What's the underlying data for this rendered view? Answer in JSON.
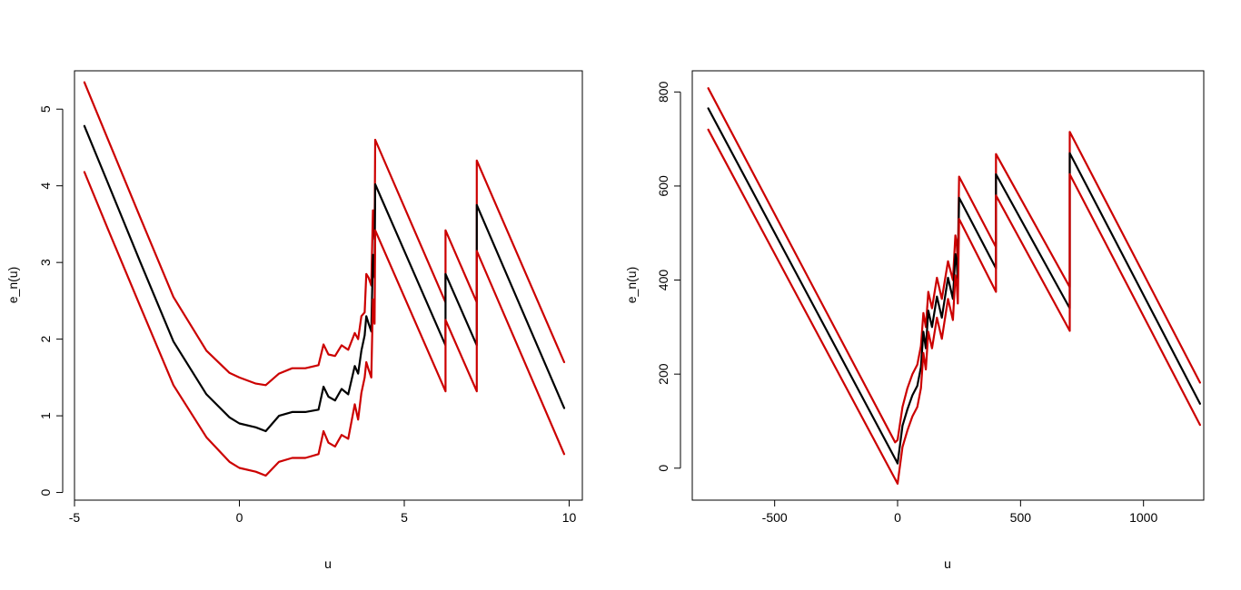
{
  "chart_data": [
    {
      "type": "line",
      "title": "",
      "xlabel": "u",
      "ylabel": "e_n(u)",
      "xlim": [
        -5,
        10.4
      ],
      "ylim": [
        -0.1,
        5.5
      ],
      "xticks": [
        -5,
        0,
        5,
        10
      ],
      "xtick_labels": [
        "-5",
        "0",
        "5",
        "10"
      ],
      "yticks": [
        0,
        1,
        2,
        3,
        4,
        5
      ],
      "ytick_labels": [
        "0",
        "1",
        "2",
        "3",
        "4",
        "5"
      ],
      "grid": false,
      "series": [
        {
          "color": "#cc0000",
          "points": [
            [
              -4.7,
              5.35
            ],
            [
              -4,
              4.62
            ],
            [
              -3,
              3.58
            ],
            [
              -2,
              2.55
            ],
            [
              -1,
              1.85
            ],
            [
              -0.3,
              1.56
            ],
            [
              0,
              1.5
            ],
            [
              0.5,
              1.42
            ],
            [
              0.8,
              1.4
            ],
            [
              1.2,
              1.55
            ],
            [
              1.6,
              1.62
            ],
            [
              2.0,
              1.62
            ],
            [
              2.4,
              1.66
            ],
            [
              2.55,
              1.93
            ],
            [
              2.7,
              1.8
            ],
            [
              2.9,
              1.78
            ],
            [
              3.1,
              1.92
            ],
            [
              3.3,
              1.86
            ],
            [
              3.5,
              2.08
            ],
            [
              3.6,
              2.0
            ],
            [
              3.7,
              2.3
            ],
            [
              3.8,
              2.35
            ],
            [
              3.85,
              2.85
            ],
            [
              3.92,
              2.8
            ],
            [
              4.0,
              2.7
            ],
            [
              4.05,
              3.68
            ],
            [
              4.1,
              3.3
            ],
            [
              4.12,
              4.6
            ],
            [
              6.25,
              2.48
            ],
            [
              6.25,
              3.42
            ],
            [
              7.2,
              2.48
            ],
            [
              7.2,
              4.33
            ],
            [
              9.85,
              1.7
            ]
          ]
        },
        {
          "color": "#000000",
          "points": [
            [
              -4.7,
              4.78
            ],
            [
              -4,
              4.05
            ],
            [
              -3,
              3.0
            ],
            [
              -2,
              1.97
            ],
            [
              -1,
              1.28
            ],
            [
              -0.3,
              0.98
            ],
            [
              0,
              0.9
            ],
            [
              0.5,
              0.85
            ],
            [
              0.8,
              0.8
            ],
            [
              1.2,
              1.0
            ],
            [
              1.6,
              1.05
            ],
            [
              2.0,
              1.05
            ],
            [
              2.4,
              1.08
            ],
            [
              2.55,
              1.38
            ],
            [
              2.7,
              1.25
            ],
            [
              2.9,
              1.2
            ],
            [
              3.1,
              1.35
            ],
            [
              3.3,
              1.28
            ],
            [
              3.5,
              1.65
            ],
            [
              3.6,
              1.55
            ],
            [
              3.7,
              1.85
            ],
            [
              3.8,
              2.05
            ],
            [
              3.85,
              2.3
            ],
            [
              3.92,
              2.2
            ],
            [
              4.0,
              2.1
            ],
            [
              4.05,
              3.1
            ],
            [
              4.1,
              2.8
            ],
            [
              4.12,
              4.02
            ],
            [
              6.25,
              1.92
            ],
            [
              6.25,
              2.85
            ],
            [
              7.2,
              1.92
            ],
            [
              7.2,
              3.75
            ],
            [
              9.85,
              1.1
            ]
          ]
        },
        {
          "color": "#cc0000",
          "points": [
            [
              -4.7,
              4.18
            ],
            [
              -4,
              3.45
            ],
            [
              -3,
              2.42
            ],
            [
              -2,
              1.4
            ],
            [
              -1,
              0.72
            ],
            [
              -0.3,
              0.4
            ],
            [
              0,
              0.32
            ],
            [
              0.5,
              0.27
            ],
            [
              0.8,
              0.22
            ],
            [
              1.2,
              0.4
            ],
            [
              1.6,
              0.45
            ],
            [
              2.0,
              0.45
            ],
            [
              2.4,
              0.5
            ],
            [
              2.55,
              0.8
            ],
            [
              2.7,
              0.65
            ],
            [
              2.9,
              0.6
            ],
            [
              3.1,
              0.75
            ],
            [
              3.3,
              0.7
            ],
            [
              3.5,
              1.15
            ],
            [
              3.6,
              0.95
            ],
            [
              3.7,
              1.3
            ],
            [
              3.8,
              1.5
            ],
            [
              3.85,
              1.7
            ],
            [
              3.92,
              1.6
            ],
            [
              4.0,
              1.5
            ],
            [
              4.05,
              2.52
            ],
            [
              4.1,
              2.2
            ],
            [
              4.12,
              3.42
            ],
            [
              6.25,
              1.32
            ],
            [
              6.25,
              2.25
            ],
            [
              7.2,
              1.32
            ],
            [
              7.2,
              3.15
            ],
            [
              9.85,
              0.5
            ]
          ]
        }
      ]
    },
    {
      "type": "line",
      "title": "",
      "xlabel": "u",
      "ylabel": "e_n(u)",
      "xlim": [
        -835,
        1245
      ],
      "ylim": [
        -68,
        845
      ],
      "xticks": [
        -500,
        0,
        500,
        1000
      ],
      "xtick_labels": [
        "-500",
        "0",
        "500",
        "1000"
      ],
      "yticks": [
        0,
        200,
        400,
        600,
        800
      ],
      "ytick_labels": [
        "0",
        "200",
        "400",
        "600",
        "800"
      ],
      "grid": false,
      "series": [
        {
          "color": "#cc0000",
          "points": [
            [
              -770,
              808
            ],
            [
              -10,
              55
            ],
            [
              0,
              60
            ],
            [
              20,
              130
            ],
            [
              40,
              170
            ],
            [
              60,
              200
            ],
            [
              80,
              220
            ],
            [
              95,
              260
            ],
            [
              105,
              330
            ],
            [
              115,
              300
            ],
            [
              125,
              375
            ],
            [
              140,
              340
            ],
            [
              160,
              405
            ],
            [
              180,
              360
            ],
            [
              205,
              440
            ],
            [
              225,
              400
            ],
            [
              235,
              495
            ],
            [
              240,
              480
            ],
            [
              245,
              435
            ],
            [
              250,
              620
            ],
            [
              400,
              470
            ],
            [
              400,
              668
            ],
            [
              700,
              385
            ],
            [
              700,
              715
            ],
            [
              1230,
              182
            ]
          ]
        },
        {
          "color": "#000000",
          "points": [
            [
              -770,
              765
            ],
            [
              -5,
              15
            ],
            [
              0,
              10
            ],
            [
              20,
              90
            ],
            [
              40,
              125
            ],
            [
              60,
              155
            ],
            [
              80,
              175
            ],
            [
              95,
              215
            ],
            [
              105,
              290
            ],
            [
              115,
              255
            ],
            [
              125,
              335
            ],
            [
              140,
              300
            ],
            [
              160,
              365
            ],
            [
              180,
              320
            ],
            [
              205,
              405
            ],
            [
              225,
              360
            ],
            [
              235,
              455
            ],
            [
              240,
              440
            ],
            [
              245,
              395
            ],
            [
              250,
              575
            ],
            [
              400,
              425
            ],
            [
              400,
              625
            ],
            [
              700,
              340
            ],
            [
              700,
              670
            ],
            [
              1230,
              137
            ]
          ]
        },
        {
          "color": "#cc0000",
          "points": [
            [
              -770,
              720
            ],
            [
              0,
              -33
            ],
            [
              20,
              45
            ],
            [
              40,
              80
            ],
            [
              60,
              110
            ],
            [
              80,
              130
            ],
            [
              95,
              170
            ],
            [
              105,
              245
            ],
            [
              115,
              210
            ],
            [
              125,
              290
            ],
            [
              140,
              255
            ],
            [
              160,
              320
            ],
            [
              180,
              275
            ],
            [
              205,
              360
            ],
            [
              225,
              315
            ],
            [
              235,
              410
            ],
            [
              240,
              395
            ],
            [
              245,
              350
            ],
            [
              250,
              530
            ],
            [
              400,
              375
            ],
            [
              400,
              580
            ],
            [
              700,
              292
            ],
            [
              700,
              625
            ],
            [
              1230,
              92
            ]
          ]
        }
      ]
    }
  ]
}
